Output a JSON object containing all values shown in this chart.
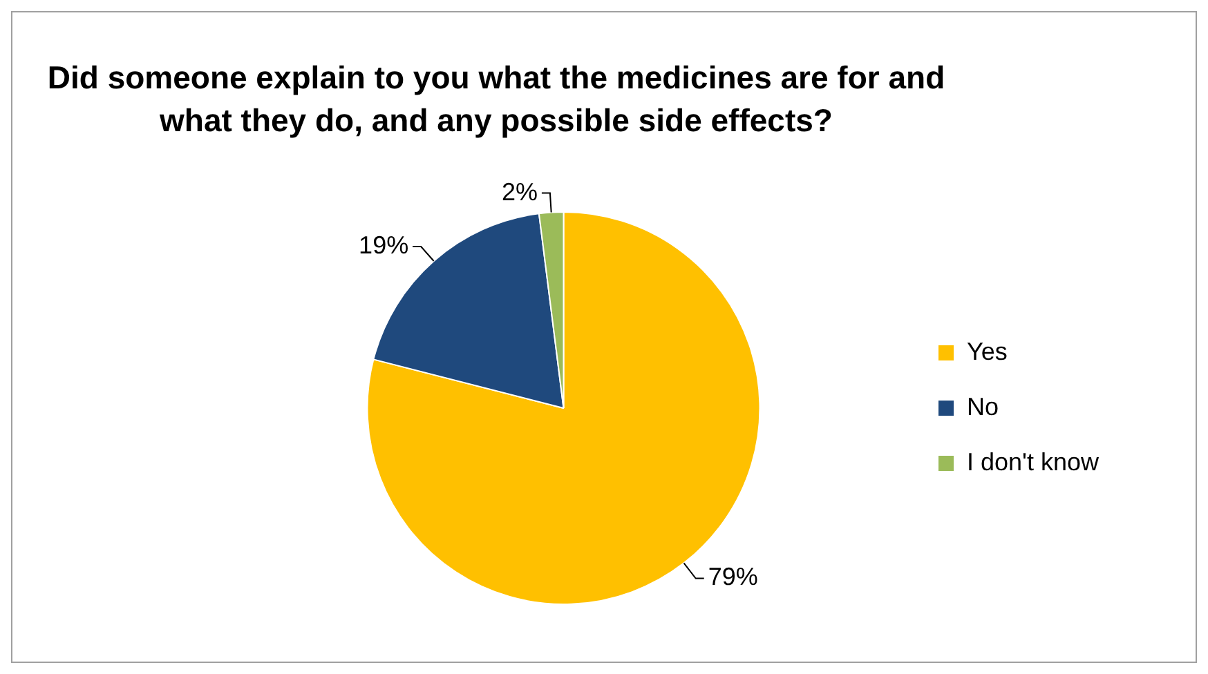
{
  "chart_data": {
    "type": "pie",
    "title": "Did someone explain to you what the medicines are for and what they do, and any possible side effects?",
    "categories": [
      "Yes",
      "No",
      "I don't know"
    ],
    "values": [
      79,
      19,
      2
    ],
    "colors": [
      "#ffc000",
      "#1f497d",
      "#9bbb59"
    ],
    "value_labels": [
      "79%",
      "19%",
      "2%"
    ],
    "legend": "right"
  }
}
